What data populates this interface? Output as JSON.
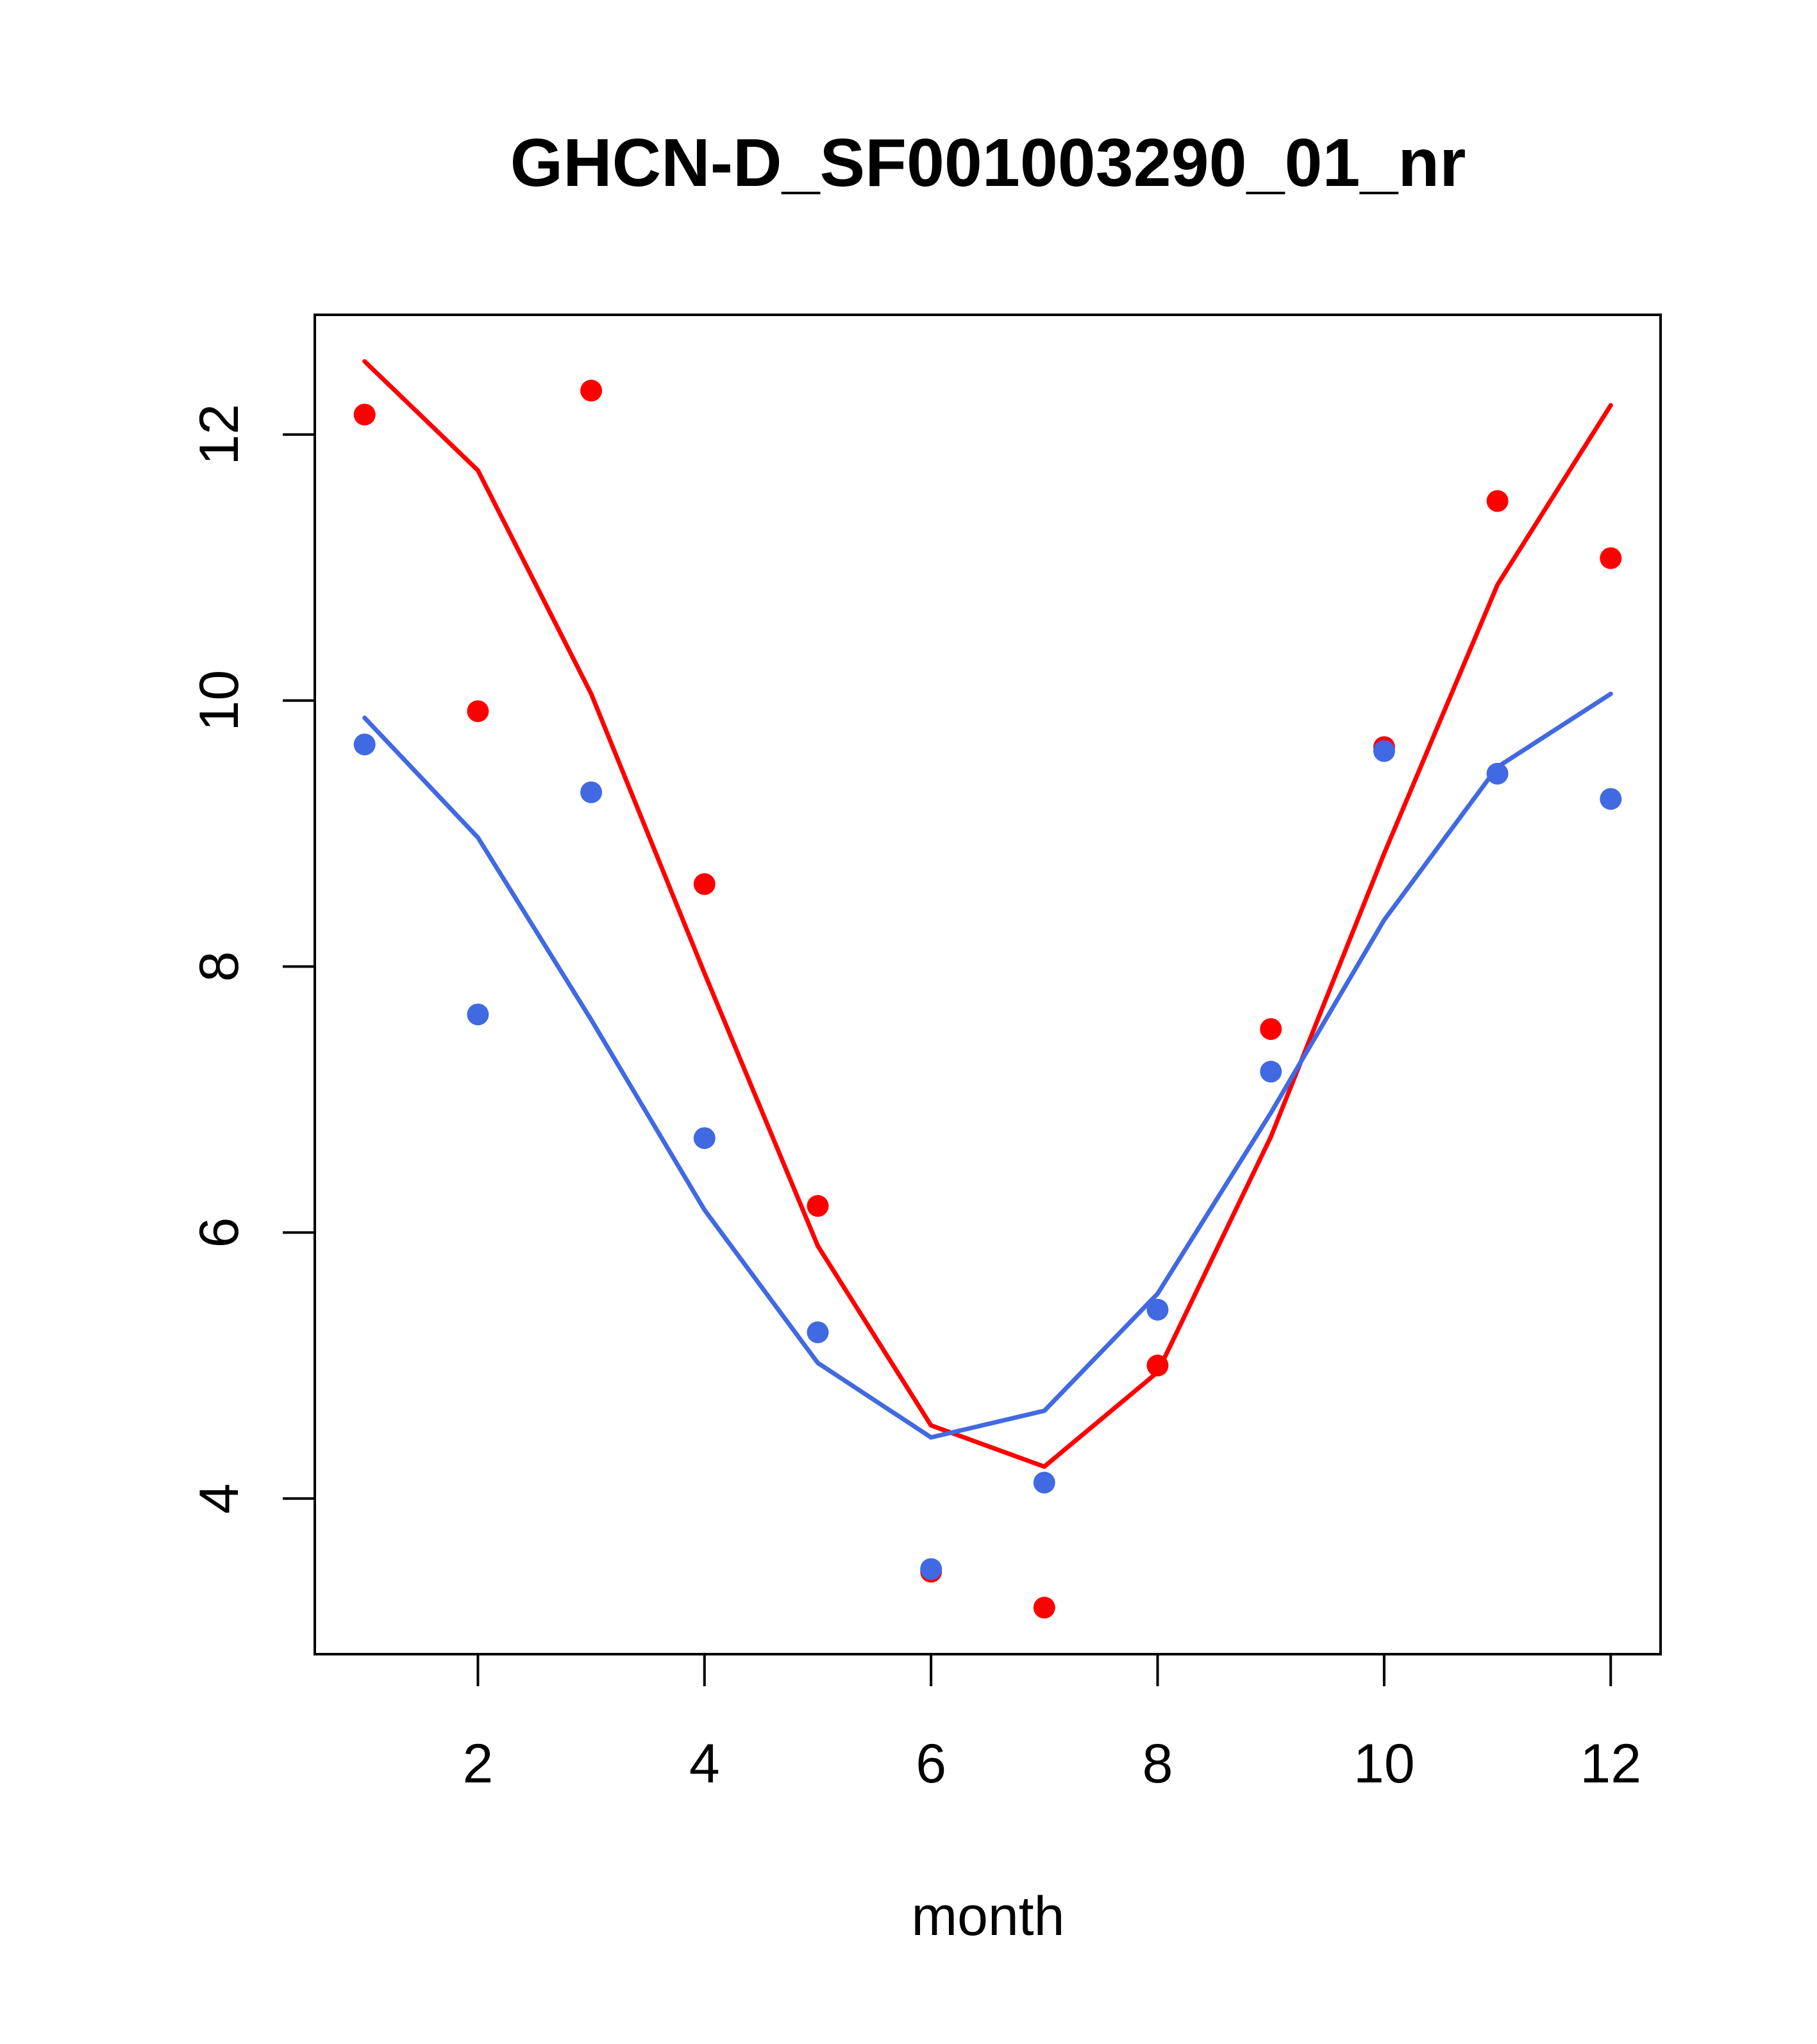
{
  "chart_data": {
    "type": "scatter",
    "title": "GHCN-D_SF001003290_01_nr",
    "xlabel": "month",
    "ylabel": "",
    "xlim": [
      0.56,
      12.44
    ],
    "ylim": [
      2.83,
      12.9
    ],
    "xticks": [
      2,
      4,
      6,
      8,
      10,
      12
    ],
    "yticks": [
      4,
      6,
      8,
      10,
      12
    ],
    "grid": false,
    "series": [
      {
        "color": "#ff0000",
        "points_y": [
          12.15,
          9.92,
          12.33,
          8.62,
          6.2,
          3.45,
          3.18,
          5.0,
          7.53,
          9.65,
          11.5,
          11.07
        ],
        "line_y": [
          12.55,
          11.73,
          10.05,
          7.95,
          5.9,
          4.55,
          4.24,
          4.95,
          6.72,
          8.85,
          10.87,
          12.22
        ]
      },
      {
        "color": "#4169e1",
        "points_y": [
          9.67,
          7.64,
          9.31,
          6.71,
          5.25,
          3.47,
          4.12,
          5.42,
          7.21,
          9.62,
          9.45,
          9.26
        ],
        "line_y": [
          9.87,
          8.97,
          7.6,
          6.17,
          5.02,
          4.46,
          4.66,
          5.54,
          6.9,
          8.35,
          9.5,
          10.05
        ]
      }
    ],
    "x": [
      1,
      2,
      3,
      4,
      5,
      6,
      7,
      8,
      9,
      10,
      11,
      12
    ]
  }
}
